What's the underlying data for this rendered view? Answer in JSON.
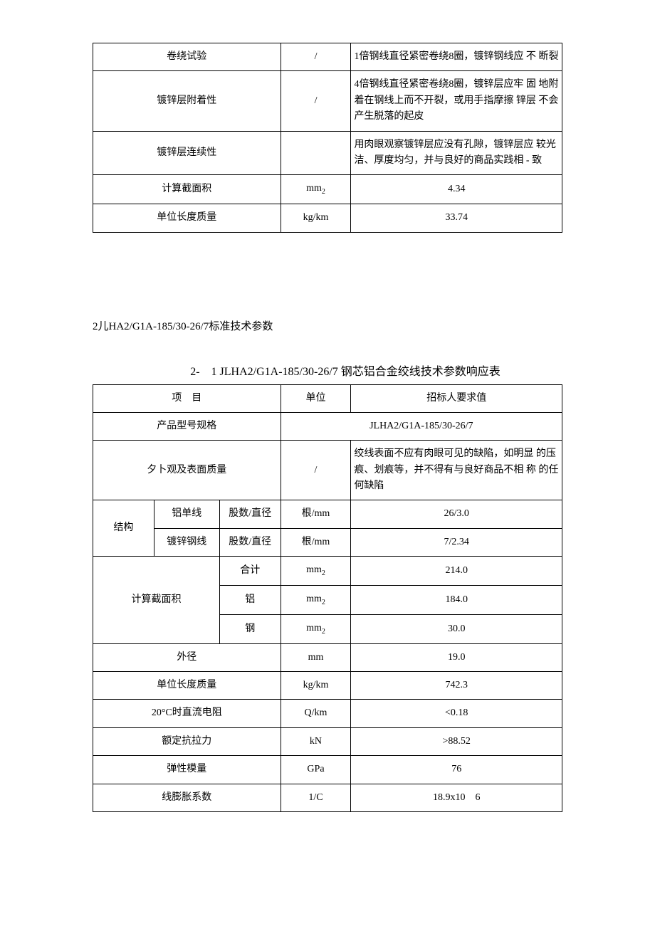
{
  "table1": {
    "rows": [
      {
        "item": "卷绕试验",
        "unit": "/",
        "value": "1倍钢线直径紧密卷绕8圈，镀锌钢线应 不 断裂"
      },
      {
        "item": "镀锌层附着性",
        "unit": "/",
        "value": "4倍钢线直径紧密卷绕8圈，镀锌层应牢 固 地附着在钢线上而不开裂，或用手指摩擦 锌层 不会产生脱落的起皮"
      },
      {
        "item": "镀锌层连续性",
        "unit": "",
        "value": "用肉眼观察镀锌层应没有孔隙，镀锌层应 较光洁、厚度均匀，并与良好的商品实践相 - 致"
      },
      {
        "item": "计算截面积",
        "unit": "mm2",
        "value": "4.34"
      },
      {
        "item": "单位长度质量",
        "unit": "kg/km",
        "value": "33.74"
      }
    ]
  },
  "section2": {
    "heading": "2儿HA2/G1A-185/30-26/7标准技术参数",
    "tableTitle": "2-　1 JLHA2/G1A-185/30-26/7 钢芯铝合金绞线技术参数响应表"
  },
  "table2": {
    "header": {
      "item": "项　目",
      "unit": "单位",
      "value": "招标人要求值"
    },
    "productSpec": {
      "label": "产品型号规格",
      "value": "JLHA2/G1A-185/30-26/7"
    },
    "appearance": {
      "label": "夕卜观及表面质量",
      "unit": "/",
      "value": "绞线表面不应有肉眼可见的缺陷，如明显 的压痕、划痕等，并不得有与良好商品不相 称 的任何缺陷"
    },
    "structure": {
      "label": "结构",
      "aluminum": {
        "label": "铝单线",
        "param": "股数/直径",
        "unit": "根/mm",
        "value": "26/3.0"
      },
      "steel": {
        "label": "镀锌钢线",
        "param": "股数/直径",
        "unit": "根/mm",
        "value": "7/2.34"
      }
    },
    "area": {
      "label": "计算截面积",
      "total": {
        "label": "合计",
        "unit": "mm2",
        "value": "214.0"
      },
      "aluminum": {
        "label": "铝",
        "unit": "mm2",
        "value": "184.0"
      },
      "steel": {
        "label": "钢",
        "unit": "mm2",
        "value": "30.0"
      }
    },
    "rows": [
      {
        "item": "外径",
        "unit": "mm",
        "value": "19.0"
      },
      {
        "item": "单位长度质量",
        "unit": "kg/km",
        "value": "742.3"
      },
      {
        "item": "20°C时直流电阻",
        "unit": "Q/km",
        "value": "<0.18"
      },
      {
        "item": "额定抗拉力",
        "unit": "kN",
        "value": ">88.52"
      },
      {
        "item": "弹性模量",
        "unit": "GPa",
        "value": "76"
      },
      {
        "item": "线膨胀系数",
        "unit": "1/C",
        "value": "18.9x10　6"
      }
    ]
  }
}
